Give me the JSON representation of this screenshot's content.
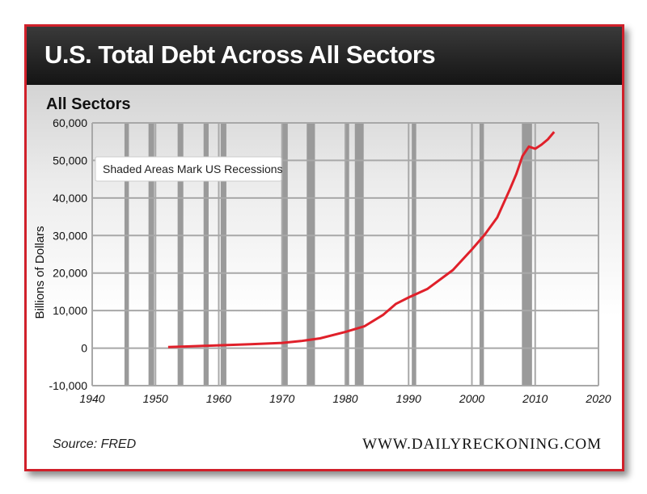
{
  "title": "U.S. Total Debt Across All Sectors",
  "footer": {
    "source": "Source: FRED",
    "website": "WWW.DAILYRECKONING.COM"
  },
  "colors": {
    "border": "#d0202a",
    "line": "#e0202a",
    "recession": "#9a9a9a",
    "grid": "#a8a8a8"
  },
  "chart_data": {
    "type": "line",
    "title": "All Sectors",
    "xlabel": "",
    "ylabel": "Billions of Dollars",
    "xlim": [
      1940,
      2020
    ],
    "ylim": [
      -10000,
      60000
    ],
    "x_ticks": [
      1940,
      1950,
      1960,
      1970,
      1980,
      1990,
      2000,
      2010,
      2020
    ],
    "y_ticks": [
      -10000,
      0,
      10000,
      20000,
      30000,
      40000,
      50000,
      60000
    ],
    "x_tick_labels": [
      "1940",
      "1950",
      "1960",
      "1970",
      "1980",
      "1990",
      "2000",
      "2010",
      "2020"
    ],
    "y_tick_labels": [
      "-10,000",
      "0",
      "10,000",
      "20,000",
      "30,000",
      "40,000",
      "50,000",
      "60,000"
    ],
    "grid": true,
    "annotation": "Shaded Areas Mark US Recessions",
    "recessions": [
      [
        1945.1,
        1945.8
      ],
      [
        1948.9,
        1949.8
      ],
      [
        1953.5,
        1954.4
      ],
      [
        1957.6,
        1958.4
      ],
      [
        1960.3,
        1961.2
      ],
      [
        1969.9,
        1970.9
      ],
      [
        1973.9,
        1975.2
      ],
      [
        1980.0,
        1980.6
      ],
      [
        1981.5,
        1982.9
      ],
      [
        1990.5,
        1991.2
      ],
      [
        2001.2,
        2001.9
      ],
      [
        2007.9,
        2009.5
      ]
    ],
    "series": [
      {
        "x": [
          1952,
          1955,
          1960,
          1965,
          1970,
          1973,
          1976,
          1980,
          1983,
          1986,
          1988,
          1990,
          1993,
          1997,
          2000,
          2002,
          2004,
          2006,
          2007,
          2008,
          2009,
          2010,
          2011,
          2012,
          2013
        ],
        "values": [
          300,
          450,
          750,
          1050,
          1400,
          1900,
          2600,
          4300,
          5800,
          8900,
          11800,
          13500,
          15800,
          20800,
          26300,
          30200,
          34800,
          42300,
          46300,
          51200,
          53700,
          53100,
          54200,
          55600,
          57600
        ]
      }
    ]
  }
}
